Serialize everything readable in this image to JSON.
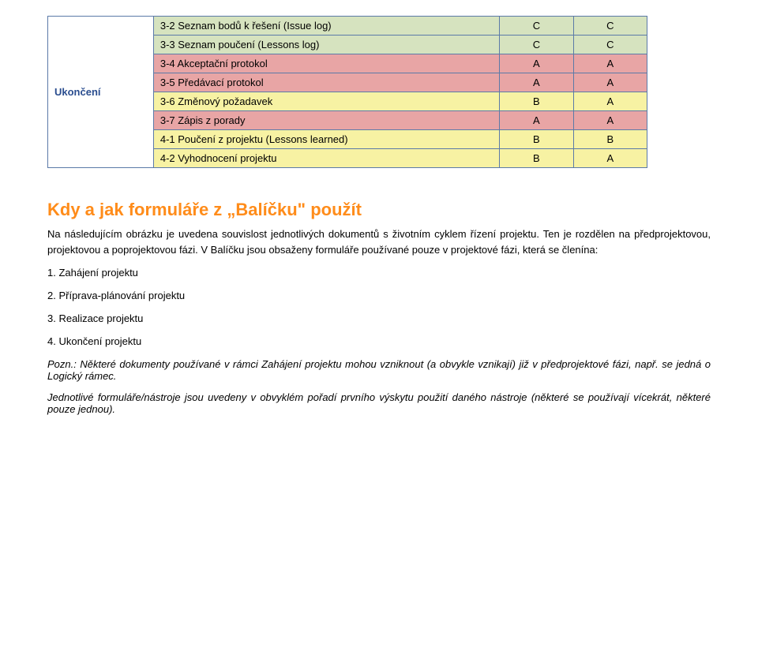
{
  "table": {
    "group_label": "Ukončení",
    "rows": [
      {
        "label": "3-2 Seznam bodů k řešení (Issue log)",
        "v1": "C",
        "v2": "C",
        "bg": "#d6e3bf"
      },
      {
        "label": "3-3 Seznam poučení (Lessons log)",
        "v1": "C",
        "v2": "C",
        "bg": "#d6e3bf"
      },
      {
        "label": "3-4 Akceptační protokol",
        "v1": "A",
        "v2": "A",
        "bg": "#e8a5a5"
      },
      {
        "label": "3-5 Předávací protokol",
        "v1": "A",
        "v2": "A",
        "bg": "#e8a5a5"
      },
      {
        "label": "3-6 Změnový požadavek",
        "v1": "B",
        "v2": "A",
        "bg": "#f7f2a3"
      },
      {
        "label": "3-7 Zápis z porady",
        "v1": "A",
        "v2": "A",
        "bg": "#e8a5a5"
      },
      {
        "label": "4-1 Poučení z projektu (Lessons learned)",
        "v1": "B",
        "v2": "B",
        "bg": "#f7f2a3"
      },
      {
        "label": "4-2 Vyhodnocení projektu",
        "v1": "B",
        "v2": "A",
        "bg": "#f7f2a3"
      }
    ]
  },
  "heading": "Kdy a jak formuláře z „Balíčku\" použít",
  "para1": "Na následujícím obrázku je uvedena souvislost jednotlivých dokumentů s životním cyklem řízení projektu. Ten je rozdělen na předprojektovou, projektovou a poprojektovou fázi. V Balíčku jsou obsaženy formuláře používané pouze v projektové fázi, která se členína:",
  "list": [
    "1. Zahájení projektu",
    "2. Příprava-plánování projektu",
    "3. Realizace projektu",
    "4. Ukončení projektu"
  ],
  "note": "Pozn.: Některé dokumenty používané v rámci Zahájení projektu mohou vzniknout (a obvykle vznikají) již v předprojektové fázi, např. se jedná o Logický rámec.",
  "para2": "Jednotlivé formuláře/nástroje jsou uvedeny v obvyklém pořadí prvního výskytu použití daného nástroje (některé se používají vícekrát, některé pouze jednou)."
}
